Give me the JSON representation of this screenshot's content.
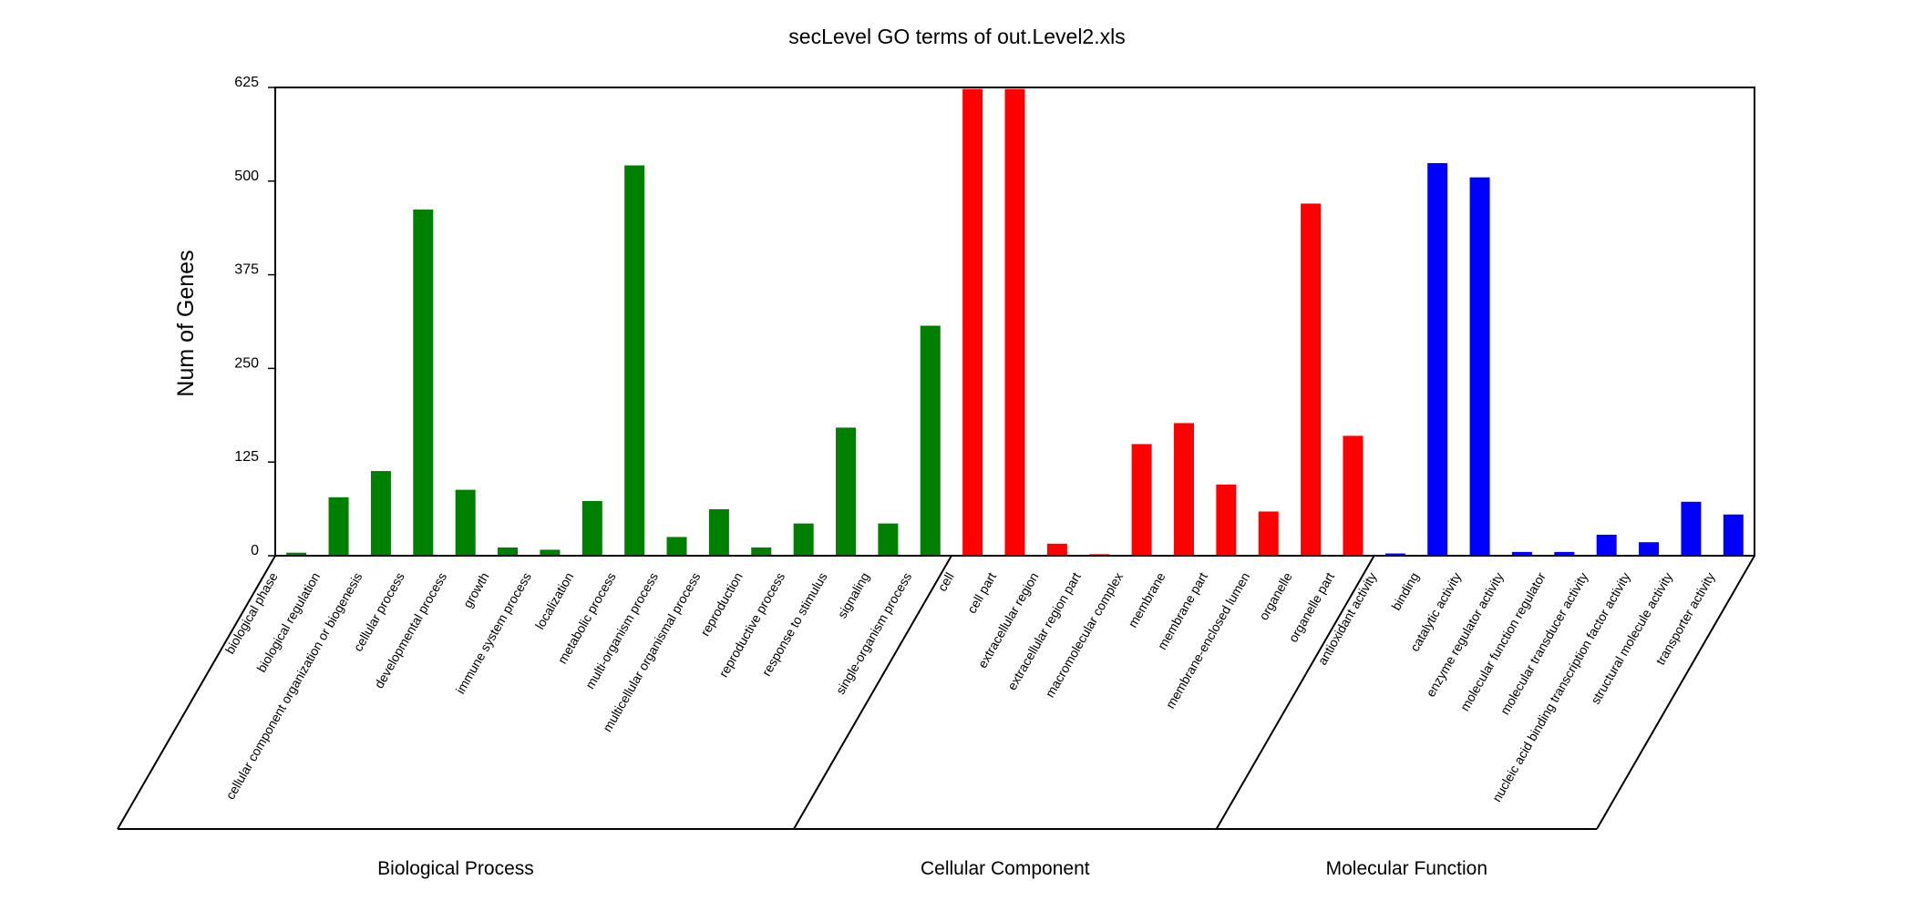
{
  "chart_data": {
    "type": "bar",
    "title": "secLevel GO terms of out.Level2.xls",
    "xlabel": "",
    "ylabel": "Num of Genes",
    "ylim": [
      0,
      625
    ],
    "yticks": [
      0,
      125,
      250,
      375,
      500,
      625
    ],
    "ytick_labels": [
      "0",
      "125",
      "250",
      "375",
      "500",
      "625"
    ],
    "grid": false,
    "legend": "none",
    "groups": [
      {
        "name": "Biological Process",
        "color": "#008000",
        "categories": [
          "biological phase",
          "biological regulation",
          "cellular component organization or biogenesis",
          "cellular process",
          "developmental process",
          "growth",
          "immune system process",
          "localization",
          "metabolic process",
          "multi-organism process",
          "multicellular organismal process",
          "reproduction",
          "reproductive process",
          "response to stimulus",
          "signaling",
          "single-organism process"
        ],
        "values": [
          4,
          78,
          113,
          462,
          88,
          11,
          8,
          73,
          521,
          25,
          62,
          11,
          43,
          171,
          43,
          307
        ]
      },
      {
        "name": "Cellular Component",
        "color": "#ff0000",
        "categories": [
          "cell",
          "cell part",
          "extracellular region",
          "extracellular region part",
          "macromolecular complex",
          "membrane",
          "membrane part",
          "membrane-enclosed lumen",
          "organelle",
          "organelle part"
        ],
        "values": [
          623,
          623,
          16,
          2,
          149,
          177,
          95,
          59,
          470,
          160
        ]
      },
      {
        "name": "Molecular Function",
        "color": "#0000ff",
        "categories": [
          "antioxidant activity",
          "binding",
          "catalytic activity",
          "enzyme regulator activity",
          "molecular function regulator",
          "molecular transducer activity",
          "nucleic acid binding transcription factor activity",
          "structural molecule activity",
          "transporter activity"
        ],
        "values": [
          3,
          524,
          505,
          5,
          5,
          28,
          18,
          72,
          55
        ]
      }
    ]
  }
}
